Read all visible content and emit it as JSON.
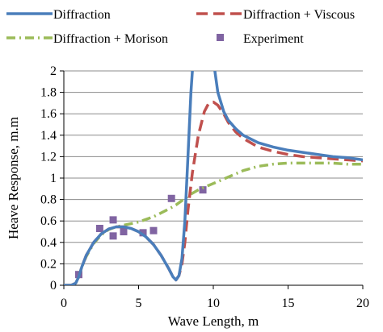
{
  "chart_data": {
    "type": "line",
    "xlabel": "Wave Length, m",
    "ylabel": "Heave Response, m.m",
    "xlim": [
      0,
      20
    ],
    "ylim": [
      0,
      2
    ],
    "x_ticks": [
      0,
      5,
      10,
      15,
      20
    ],
    "y_ticks": [
      0,
      0.2,
      0.4,
      0.6,
      0.8,
      1,
      1.2,
      1.4,
      1.6,
      1.8,
      2
    ],
    "x_tick_labels": [
      "0",
      "5",
      "10",
      "15",
      "20"
    ],
    "y_tick_labels": [
      "0",
      "0.2",
      "0.4",
      "0.6",
      "0.8",
      "1",
      "1.2",
      "1.4",
      "1.6",
      "1.8",
      "2"
    ],
    "grid": "horizontal",
    "legend_placement": "top",
    "series": [
      {
        "name": "Diffraction",
        "style": "solid",
        "color": "#4a7ebb",
        "points": [
          [
            0.0,
            0.0
          ],
          [
            0.5,
            0.0
          ],
          [
            0.8,
            0.02
          ],
          [
            1.0,
            0.08
          ],
          [
            1.2,
            0.17
          ],
          [
            1.5,
            0.28
          ],
          [
            2.0,
            0.4
          ],
          [
            2.5,
            0.48
          ],
          [
            3.0,
            0.525
          ],
          [
            3.5,
            0.545
          ],
          [
            4.0,
            0.545
          ],
          [
            4.5,
            0.53
          ],
          [
            5.0,
            0.5
          ],
          [
            5.5,
            0.45
          ],
          [
            6.0,
            0.38
          ],
          [
            6.5,
            0.28
          ],
          [
            7.0,
            0.16
          ],
          [
            7.3,
            0.08
          ],
          [
            7.5,
            0.05
          ],
          [
            7.7,
            0.09
          ],
          [
            7.9,
            0.25
          ],
          [
            8.1,
            0.6
          ],
          [
            8.3,
            1.2
          ],
          [
            8.5,
            1.8
          ],
          [
            8.6,
            2.0
          ]
        ]
      },
      {
        "name": "Diffraction",
        "style": "solid",
        "color": "#4a7ebb",
        "points": [
          [
            10.1,
            2.0
          ],
          [
            10.3,
            1.8
          ],
          [
            10.7,
            1.62
          ],
          [
            11.0,
            1.54
          ],
          [
            11.5,
            1.46
          ],
          [
            12.0,
            1.4
          ],
          [
            13.0,
            1.33
          ],
          [
            14.0,
            1.29
          ],
          [
            15.0,
            1.26
          ],
          [
            16.0,
            1.24
          ],
          [
            17.0,
            1.22
          ],
          [
            18.0,
            1.2
          ],
          [
            19.0,
            1.19
          ],
          [
            20.0,
            1.17
          ]
        ]
      },
      {
        "name": "Diffraction + Viscous",
        "style": "dashed",
        "color": "#c0504d",
        "points": [
          [
            0.0,
            0.0
          ],
          [
            0.5,
            0.0
          ],
          [
            0.8,
            0.02
          ],
          [
            1.0,
            0.08
          ],
          [
            1.2,
            0.17
          ],
          [
            1.5,
            0.28
          ],
          [
            2.0,
            0.4
          ],
          [
            2.5,
            0.48
          ],
          [
            3.0,
            0.525
          ],
          [
            3.5,
            0.545
          ],
          [
            4.0,
            0.545
          ],
          [
            4.5,
            0.53
          ],
          [
            5.0,
            0.5
          ],
          [
            5.5,
            0.45
          ],
          [
            6.0,
            0.38
          ],
          [
            6.5,
            0.28
          ],
          [
            7.0,
            0.16
          ],
          [
            7.3,
            0.08
          ],
          [
            7.5,
            0.05
          ],
          [
            7.7,
            0.09
          ],
          [
            7.9,
            0.2
          ],
          [
            8.1,
            0.4
          ],
          [
            8.3,
            0.7
          ],
          [
            8.6,
            1.05
          ],
          [
            9.0,
            1.4
          ],
          [
            9.4,
            1.62
          ],
          [
            9.7,
            1.7
          ],
          [
            10.0,
            1.71
          ],
          [
            10.3,
            1.68
          ],
          [
            10.7,
            1.6
          ],
          [
            11.0,
            1.52
          ],
          [
            11.5,
            1.43
          ],
          [
            12.0,
            1.37
          ],
          [
            13.0,
            1.29
          ],
          [
            14.0,
            1.25
          ],
          [
            15.0,
            1.22
          ],
          [
            16.0,
            1.2
          ],
          [
            17.0,
            1.19
          ],
          [
            18.0,
            1.18
          ],
          [
            19.0,
            1.17
          ],
          [
            20.0,
            1.16
          ]
        ]
      },
      {
        "name": "Diffraction + Morison",
        "style": "dashdot",
        "color": "#9bbb59",
        "points": [
          [
            0.0,
            0.0
          ],
          [
            0.5,
            0.0
          ],
          [
            0.8,
            0.02
          ],
          [
            1.0,
            0.08
          ],
          [
            1.2,
            0.17
          ],
          [
            1.5,
            0.27
          ],
          [
            2.0,
            0.39
          ],
          [
            2.5,
            0.47
          ],
          [
            3.0,
            0.52
          ],
          [
            3.5,
            0.545
          ],
          [
            4.0,
            0.56
          ],
          [
            5.0,
            0.59
          ],
          [
            6.0,
            0.64
          ],
          [
            7.0,
            0.71
          ],
          [
            7.5,
            0.75
          ],
          [
            8.0,
            0.8
          ],
          [
            8.5,
            0.85
          ],
          [
            9.0,
            0.89
          ],
          [
            9.5,
            0.92
          ],
          [
            10.0,
            0.95
          ],
          [
            10.5,
            0.98
          ],
          [
            11.0,
            1.01
          ],
          [
            11.5,
            1.04
          ],
          [
            12.0,
            1.07
          ],
          [
            13.0,
            1.11
          ],
          [
            14.0,
            1.13
          ],
          [
            15.0,
            1.14
          ],
          [
            16.0,
            1.14
          ],
          [
            17.0,
            1.14
          ],
          [
            18.0,
            1.14
          ],
          [
            19.0,
            1.13
          ],
          [
            20.0,
            1.13
          ]
        ]
      },
      {
        "name": "Experiment",
        "style": "markers",
        "color": "#8064a2",
        "points": [
          [
            1.0,
            0.1
          ],
          [
            2.4,
            0.53
          ],
          [
            3.3,
            0.61
          ],
          [
            3.3,
            0.46
          ],
          [
            4.0,
            0.5
          ],
          [
            5.3,
            0.49
          ],
          [
            6.0,
            0.51
          ],
          [
            7.2,
            0.81
          ],
          [
            9.3,
            0.89
          ]
        ]
      }
    ]
  },
  "legend": {
    "items": [
      {
        "label": "Diffraction",
        "style": "solid",
        "color": "#4a7ebb"
      },
      {
        "label": "Diffraction + Viscous",
        "style": "dashed",
        "color": "#c0504d"
      },
      {
        "label": "Diffraction + Morison",
        "style": "dashdot",
        "color": "#9bbb59"
      },
      {
        "label": "Experiment",
        "style": "markers",
        "color": "#8064a2"
      }
    ]
  }
}
